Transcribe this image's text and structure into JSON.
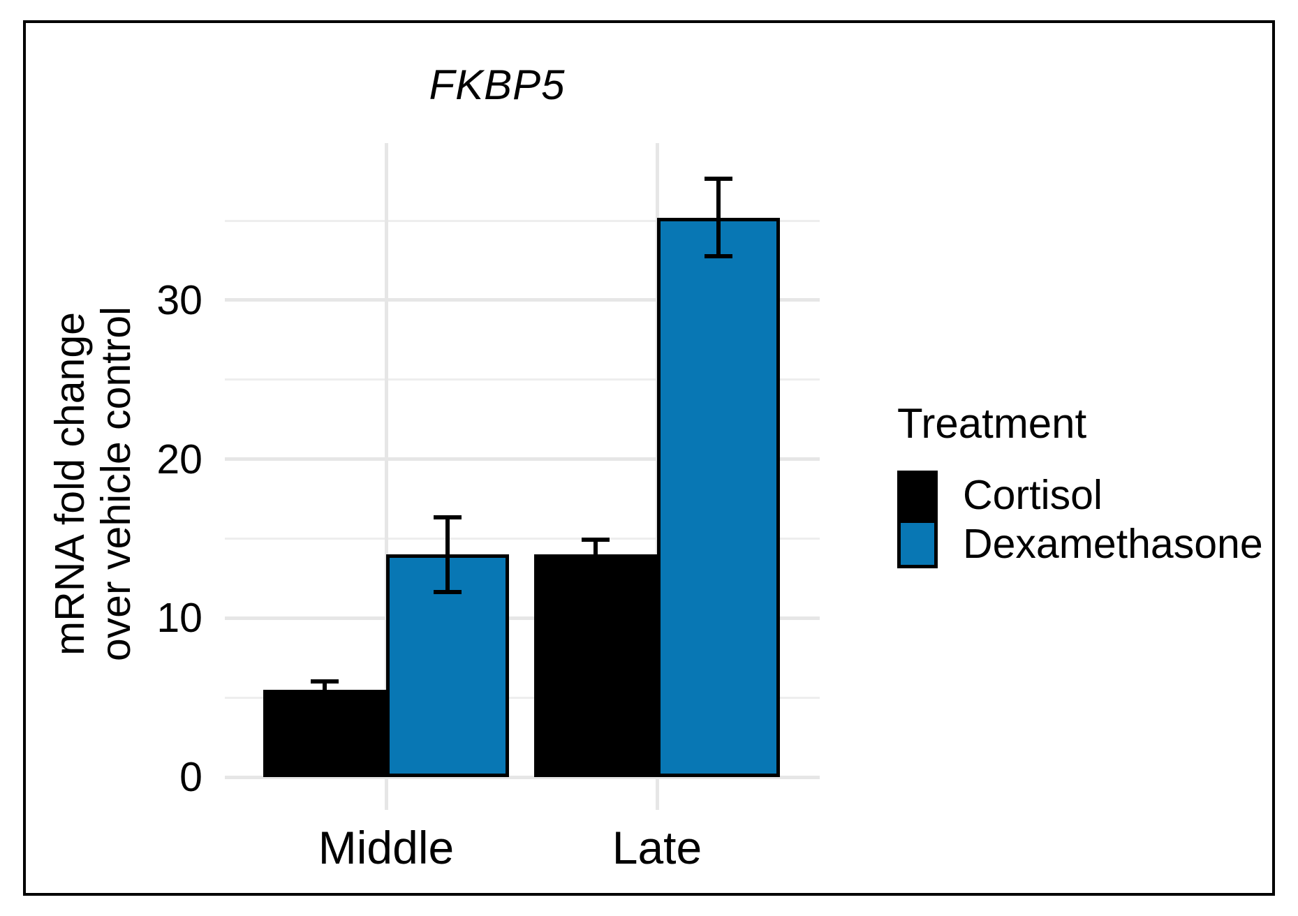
{
  "figure": {
    "title": "FKBP5",
    "ylabel_line1": "mRNA fold change",
    "ylabel_line2": "over vehicle control",
    "legend": {
      "title": "Treatment",
      "items": [
        {
          "label": "Cortisol",
          "color": "#000000"
        },
        {
          "label": "Dexamethasone",
          "color": "#0877b4"
        }
      ]
    }
  },
  "chart_data": {
    "type": "bar",
    "title": "FKBP5",
    "xlabel": "",
    "ylabel": "mRNA fold change over vehicle control",
    "categories": [
      "Middle",
      "Late"
    ],
    "series": [
      {
        "name": "Cortisol",
        "color": "#000000",
        "values": [
          5.5,
          14.0
        ],
        "errors": [
          0.5,
          0.95
        ]
      },
      {
        "name": "Dexamethasone",
        "color": "#0877b4",
        "values": [
          14.0,
          35.2
        ],
        "errors": [
          2.35,
          2.45
        ]
      }
    ],
    "yticks": [
      0,
      10,
      20,
      30
    ],
    "ytick_labels": [
      "0",
      "10",
      "20",
      "30"
    ],
    "minor_gridlines": [
      5,
      15,
      25,
      35
    ],
    "ylim": [
      0,
      38
    ],
    "grid": true,
    "error_bars": true,
    "legend_title": "Treatment",
    "legend_position": "right",
    "bar_outline_color": "#000000",
    "grid_color": "#e6e6e6"
  }
}
